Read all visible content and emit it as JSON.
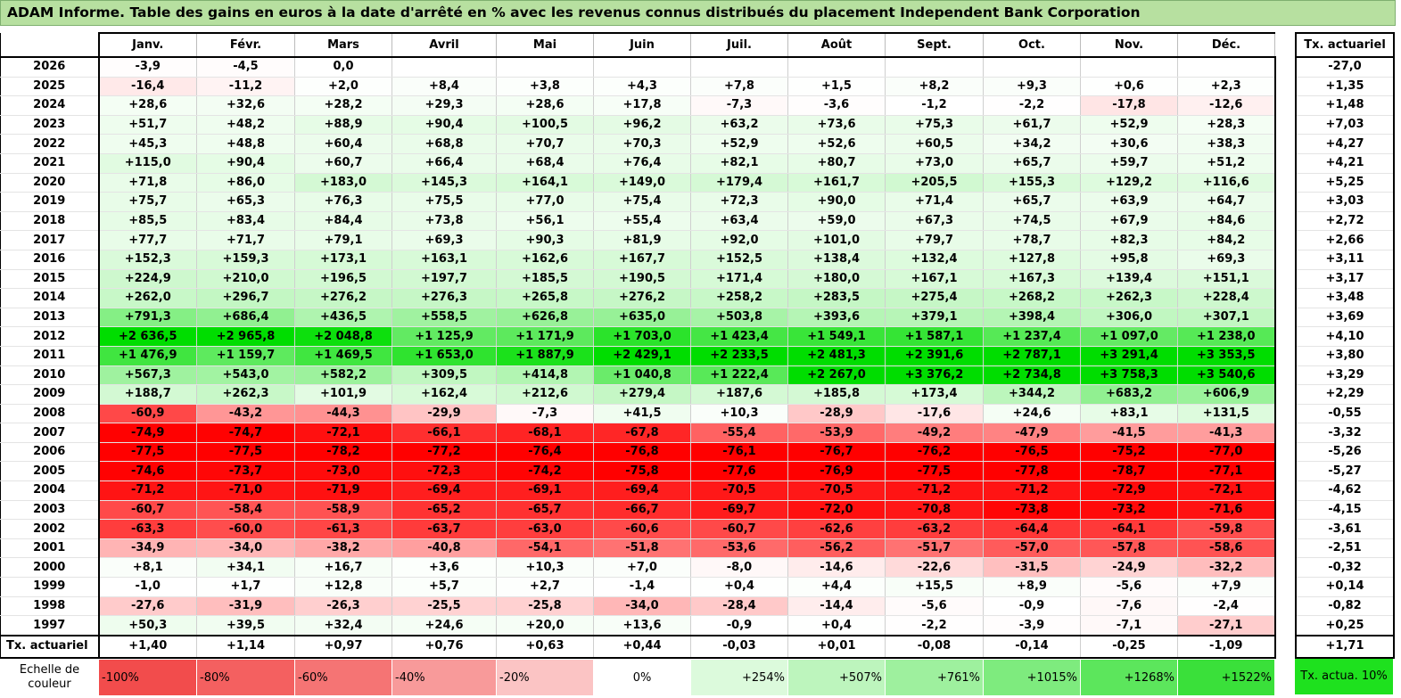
{
  "title": "ADAM Informe. Table des gains en euros à la date d'arrêté en % avec les revenus connus distribués du placement Independent Bank Corporation",
  "chart_data": {
    "type": "heatmap",
    "columns": [
      "Janv.",
      "Févr.",
      "Mars",
      "Avril",
      "Mai",
      "Juin",
      "Juil.",
      "Août",
      "Sept.",
      "Oct.",
      "Nov.",
      "Déc."
    ],
    "side_header": "Tx. actuariel",
    "rows": [
      {
        "year": "2026",
        "values": [
          "-3,9",
          "-4,5",
          "0,0",
          "",
          "",
          "",
          "",
          "",
          "",
          "",
          "",
          ""
        ],
        "rate": "-27,0"
      },
      {
        "year": "2025",
        "values": [
          "-16,4",
          "-11,2",
          "+2,0",
          "+8,4",
          "+3,8",
          "+4,3",
          "+7,8",
          "+1,5",
          "+8,2",
          "+9,3",
          "+0,6",
          "+2,3"
        ],
        "rate": "+1,35"
      },
      {
        "year": "2024",
        "values": [
          "+28,6",
          "+32,6",
          "+28,2",
          "+29,3",
          "+28,6",
          "+17,8",
          "-7,3",
          "-3,6",
          "-1,2",
          "-2,2",
          "-17,8",
          "-12,6"
        ],
        "rate": "+1,48"
      },
      {
        "year": "2023",
        "values": [
          "+51,7",
          "+48,2",
          "+88,9",
          "+90,4",
          "+100,5",
          "+96,2",
          "+63,2",
          "+73,6",
          "+75,3",
          "+61,7",
          "+52,9",
          "+28,3"
        ],
        "rate": "+7,03"
      },
      {
        "year": "2022",
        "values": [
          "+45,3",
          "+48,8",
          "+60,4",
          "+68,8",
          "+70,7",
          "+70,3",
          "+52,9",
          "+52,6",
          "+60,5",
          "+34,2",
          "+30,6",
          "+38,3"
        ],
        "rate": "+4,27"
      },
      {
        "year": "2021",
        "values": [
          "+115,0",
          "+90,4",
          "+60,7",
          "+66,4",
          "+68,4",
          "+76,4",
          "+82,1",
          "+80,7",
          "+73,0",
          "+65,7",
          "+59,7",
          "+51,2"
        ],
        "rate": "+4,21"
      },
      {
        "year": "2020",
        "values": [
          "+71,8",
          "+86,0",
          "+183,0",
          "+145,3",
          "+164,1",
          "+149,0",
          "+179,4",
          "+161,7",
          "+205,5",
          "+155,3",
          "+129,2",
          "+116,6"
        ],
        "rate": "+5,25"
      },
      {
        "year": "2019",
        "values": [
          "+75,7",
          "+65,3",
          "+76,3",
          "+75,5",
          "+77,0",
          "+75,4",
          "+72,3",
          "+90,0",
          "+71,4",
          "+65,7",
          "+63,9",
          "+64,7"
        ],
        "rate": "+3,03"
      },
      {
        "year": "2018",
        "values": [
          "+85,5",
          "+83,4",
          "+84,4",
          "+73,8",
          "+56,1",
          "+55,4",
          "+63,4",
          "+59,0",
          "+67,3",
          "+74,5",
          "+67,9",
          "+84,6"
        ],
        "rate": "+2,72"
      },
      {
        "year": "2017",
        "values": [
          "+77,7",
          "+71,7",
          "+79,1",
          "+69,3",
          "+90,3",
          "+81,9",
          "+92,0",
          "+101,0",
          "+79,7",
          "+78,7",
          "+82,3",
          "+84,2"
        ],
        "rate": "+2,66"
      },
      {
        "year": "2016",
        "values": [
          "+152,3",
          "+159,3",
          "+173,1",
          "+163,1",
          "+162,6",
          "+167,7",
          "+152,5",
          "+138,4",
          "+132,4",
          "+127,8",
          "+95,8",
          "+69,3"
        ],
        "rate": "+3,11"
      },
      {
        "year": "2015",
        "values": [
          "+224,9",
          "+210,0",
          "+196,5",
          "+197,7",
          "+185,5",
          "+190,5",
          "+171,4",
          "+180,0",
          "+167,1",
          "+167,3",
          "+139,4",
          "+151,1"
        ],
        "rate": "+3,17"
      },
      {
        "year": "2014",
        "values": [
          "+262,0",
          "+296,7",
          "+276,2",
          "+276,3",
          "+265,8",
          "+276,2",
          "+258,2",
          "+283,5",
          "+275,4",
          "+268,2",
          "+262,3",
          "+228,4"
        ],
        "rate": "+3,48"
      },
      {
        "year": "2013",
        "values": [
          "+791,3",
          "+686,4",
          "+436,5",
          "+558,5",
          "+626,8",
          "+635,0",
          "+503,8",
          "+393,6",
          "+379,1",
          "+398,4",
          "+306,0",
          "+307,1"
        ],
        "rate": "+3,69"
      },
      {
        "year": "2012",
        "values": [
          "+2 636,5",
          "+2 965,8",
          "+2 048,8",
          "+1 125,9",
          "+1 171,9",
          "+1 703,0",
          "+1 423,4",
          "+1 549,1",
          "+1 587,1",
          "+1 237,4",
          "+1 097,0",
          "+1 238,0"
        ],
        "rate": "+4,10"
      },
      {
        "year": "2011",
        "values": [
          "+1 476,9",
          "+1 159,7",
          "+1 469,5",
          "+1 653,0",
          "+1 887,9",
          "+2 429,1",
          "+2 233,5",
          "+2 481,3",
          "+2 391,6",
          "+2 787,1",
          "+3 291,4",
          "+3 353,5"
        ],
        "rate": "+3,80"
      },
      {
        "year": "2010",
        "values": [
          "+567,3",
          "+543,0",
          "+582,2",
          "+309,5",
          "+414,8",
          "+1 040,8",
          "+1 222,4",
          "+2 267,0",
          "+3 376,2",
          "+2 734,8",
          "+3 758,3",
          "+3 540,6"
        ],
        "rate": "+3,29"
      },
      {
        "year": "2009",
        "values": [
          "+188,7",
          "+262,3",
          "+101,9",
          "+162,4",
          "+212,6",
          "+279,4",
          "+187,6",
          "+185,8",
          "+173,4",
          "+344,2",
          "+683,2",
          "+606,9"
        ],
        "rate": "+2,29"
      },
      {
        "year": "2008",
        "values": [
          "-60,9",
          "-43,2",
          "-44,3",
          "-29,9",
          "-7,3",
          "+41,5",
          "+10,3",
          "-28,9",
          "-17,6",
          "+24,6",
          "+83,1",
          "+131,5"
        ],
        "rate": "-0,55"
      },
      {
        "year": "2007",
        "values": [
          "-74,9",
          "-74,7",
          "-72,1",
          "-66,1",
          "-68,1",
          "-67,8",
          "-55,4",
          "-53,9",
          "-49,2",
          "-47,9",
          "-41,5",
          "-41,3"
        ],
        "rate": "-3,32"
      },
      {
        "year": "2006",
        "values": [
          "-77,5",
          "-77,5",
          "-78,2",
          "-77,2",
          "-76,4",
          "-76,8",
          "-76,1",
          "-76,7",
          "-76,2",
          "-76,5",
          "-75,2",
          "-77,0"
        ],
        "rate": "-5,26"
      },
      {
        "year": "2005",
        "values": [
          "-74,6",
          "-73,7",
          "-73,0",
          "-72,3",
          "-74,2",
          "-75,8",
          "-77,6",
          "-76,9",
          "-77,5",
          "-77,8",
          "-78,7",
          "-77,1"
        ],
        "rate": "-5,27"
      },
      {
        "year": "2004",
        "values": [
          "-71,2",
          "-71,0",
          "-71,9",
          "-69,4",
          "-69,1",
          "-69,4",
          "-70,5",
          "-70,5",
          "-71,2",
          "-71,2",
          "-72,9",
          "-72,1"
        ],
        "rate": "-4,62"
      },
      {
        "year": "2003",
        "values": [
          "-60,7",
          "-58,4",
          "-58,9",
          "-65,2",
          "-65,7",
          "-66,7",
          "-69,7",
          "-72,0",
          "-70,8",
          "-73,8",
          "-73,2",
          "-71,6"
        ],
        "rate": "-4,15"
      },
      {
        "year": "2002",
        "values": [
          "-63,3",
          "-60,0",
          "-61,3",
          "-63,7",
          "-63,0",
          "-60,6",
          "-60,7",
          "-62,6",
          "-63,2",
          "-64,4",
          "-64,1",
          "-59,8"
        ],
        "rate": "-3,61"
      },
      {
        "year": "2001",
        "values": [
          "-34,9",
          "-34,0",
          "-38,2",
          "-40,8",
          "-54,1",
          "-51,8",
          "-53,6",
          "-56,2",
          "-51,7",
          "-57,0",
          "-57,8",
          "-58,6"
        ],
        "rate": "-2,51"
      },
      {
        "year": "2000",
        "values": [
          "+8,1",
          "+34,1",
          "+16,7",
          "+3,6",
          "+10,3",
          "+7,0",
          "-8,0",
          "-14,6",
          "-22,6",
          "-31,5",
          "-24,9",
          "-32,2"
        ],
        "rate": "-0,32"
      },
      {
        "year": "1999",
        "values": [
          "-1,0",
          "+1,7",
          "+12,8",
          "+5,7",
          "+2,7",
          "-1,4",
          "+0,4",
          "+4,4",
          "+15,5",
          "+8,9",
          "-5,6",
          "+7,9"
        ],
        "rate": "+0,14"
      },
      {
        "year": "1998",
        "values": [
          "-27,6",
          "-31,9",
          "-26,3",
          "-25,5",
          "-25,8",
          "-34,0",
          "-28,4",
          "-14,4",
          "-5,6",
          "-0,9",
          "-7,6",
          "-2,4"
        ],
        "rate": "-0,82"
      },
      {
        "year": "1997",
        "values": [
          "+50,3",
          "+39,5",
          "+32,4",
          "+24,6",
          "+20,0",
          "+13,6",
          "-0,9",
          "+0,4",
          "-2,2",
          "-3,9",
          "-7,1",
          "-27,1"
        ],
        "rate": "+0,25"
      }
    ],
    "summary": {
      "label": "Tx. actuariel",
      "values": [
        "+1,40",
        "+1,14",
        "+0,97",
        "+0,76",
        "+0,63",
        "+0,44",
        "-0,03",
        "+0,01",
        "-0,08",
        "-0,14",
        "-0,25",
        "-1,09"
      ],
      "rate": "+1,71"
    },
    "scale": {
      "label": "Echelle de couleur",
      "steps": [
        {
          "text": "-100%",
          "color": "#f24c4c"
        },
        {
          "text": "-80%",
          "color": "#f46060"
        },
        {
          "text": "-60%",
          "color": "#f57474"
        },
        {
          "text": "-40%",
          "color": "#f89a9a"
        },
        {
          "text": "-20%",
          "color": "#fbc4c4"
        },
        {
          "text": "0%",
          "color": "#ffffff"
        },
        {
          "text": "+254%",
          "color": "#dcfadc"
        },
        {
          "text": "+507%",
          "color": "#bdf5bd"
        },
        {
          "text": "+761%",
          "color": "#9ef09e"
        },
        {
          "text": "+1015%",
          "color": "#7eeb7e"
        },
        {
          "text": "+1268%",
          "color": "#5ce65c"
        },
        {
          "text": "+1522%",
          "color": "#3ae03a"
        }
      ],
      "side_text": "Tx. actua. 10%"
    },
    "colors": {
      "negative_max": "#ff0000",
      "positive_max": "#00dd00",
      "zero": "#ffffff"
    }
  }
}
